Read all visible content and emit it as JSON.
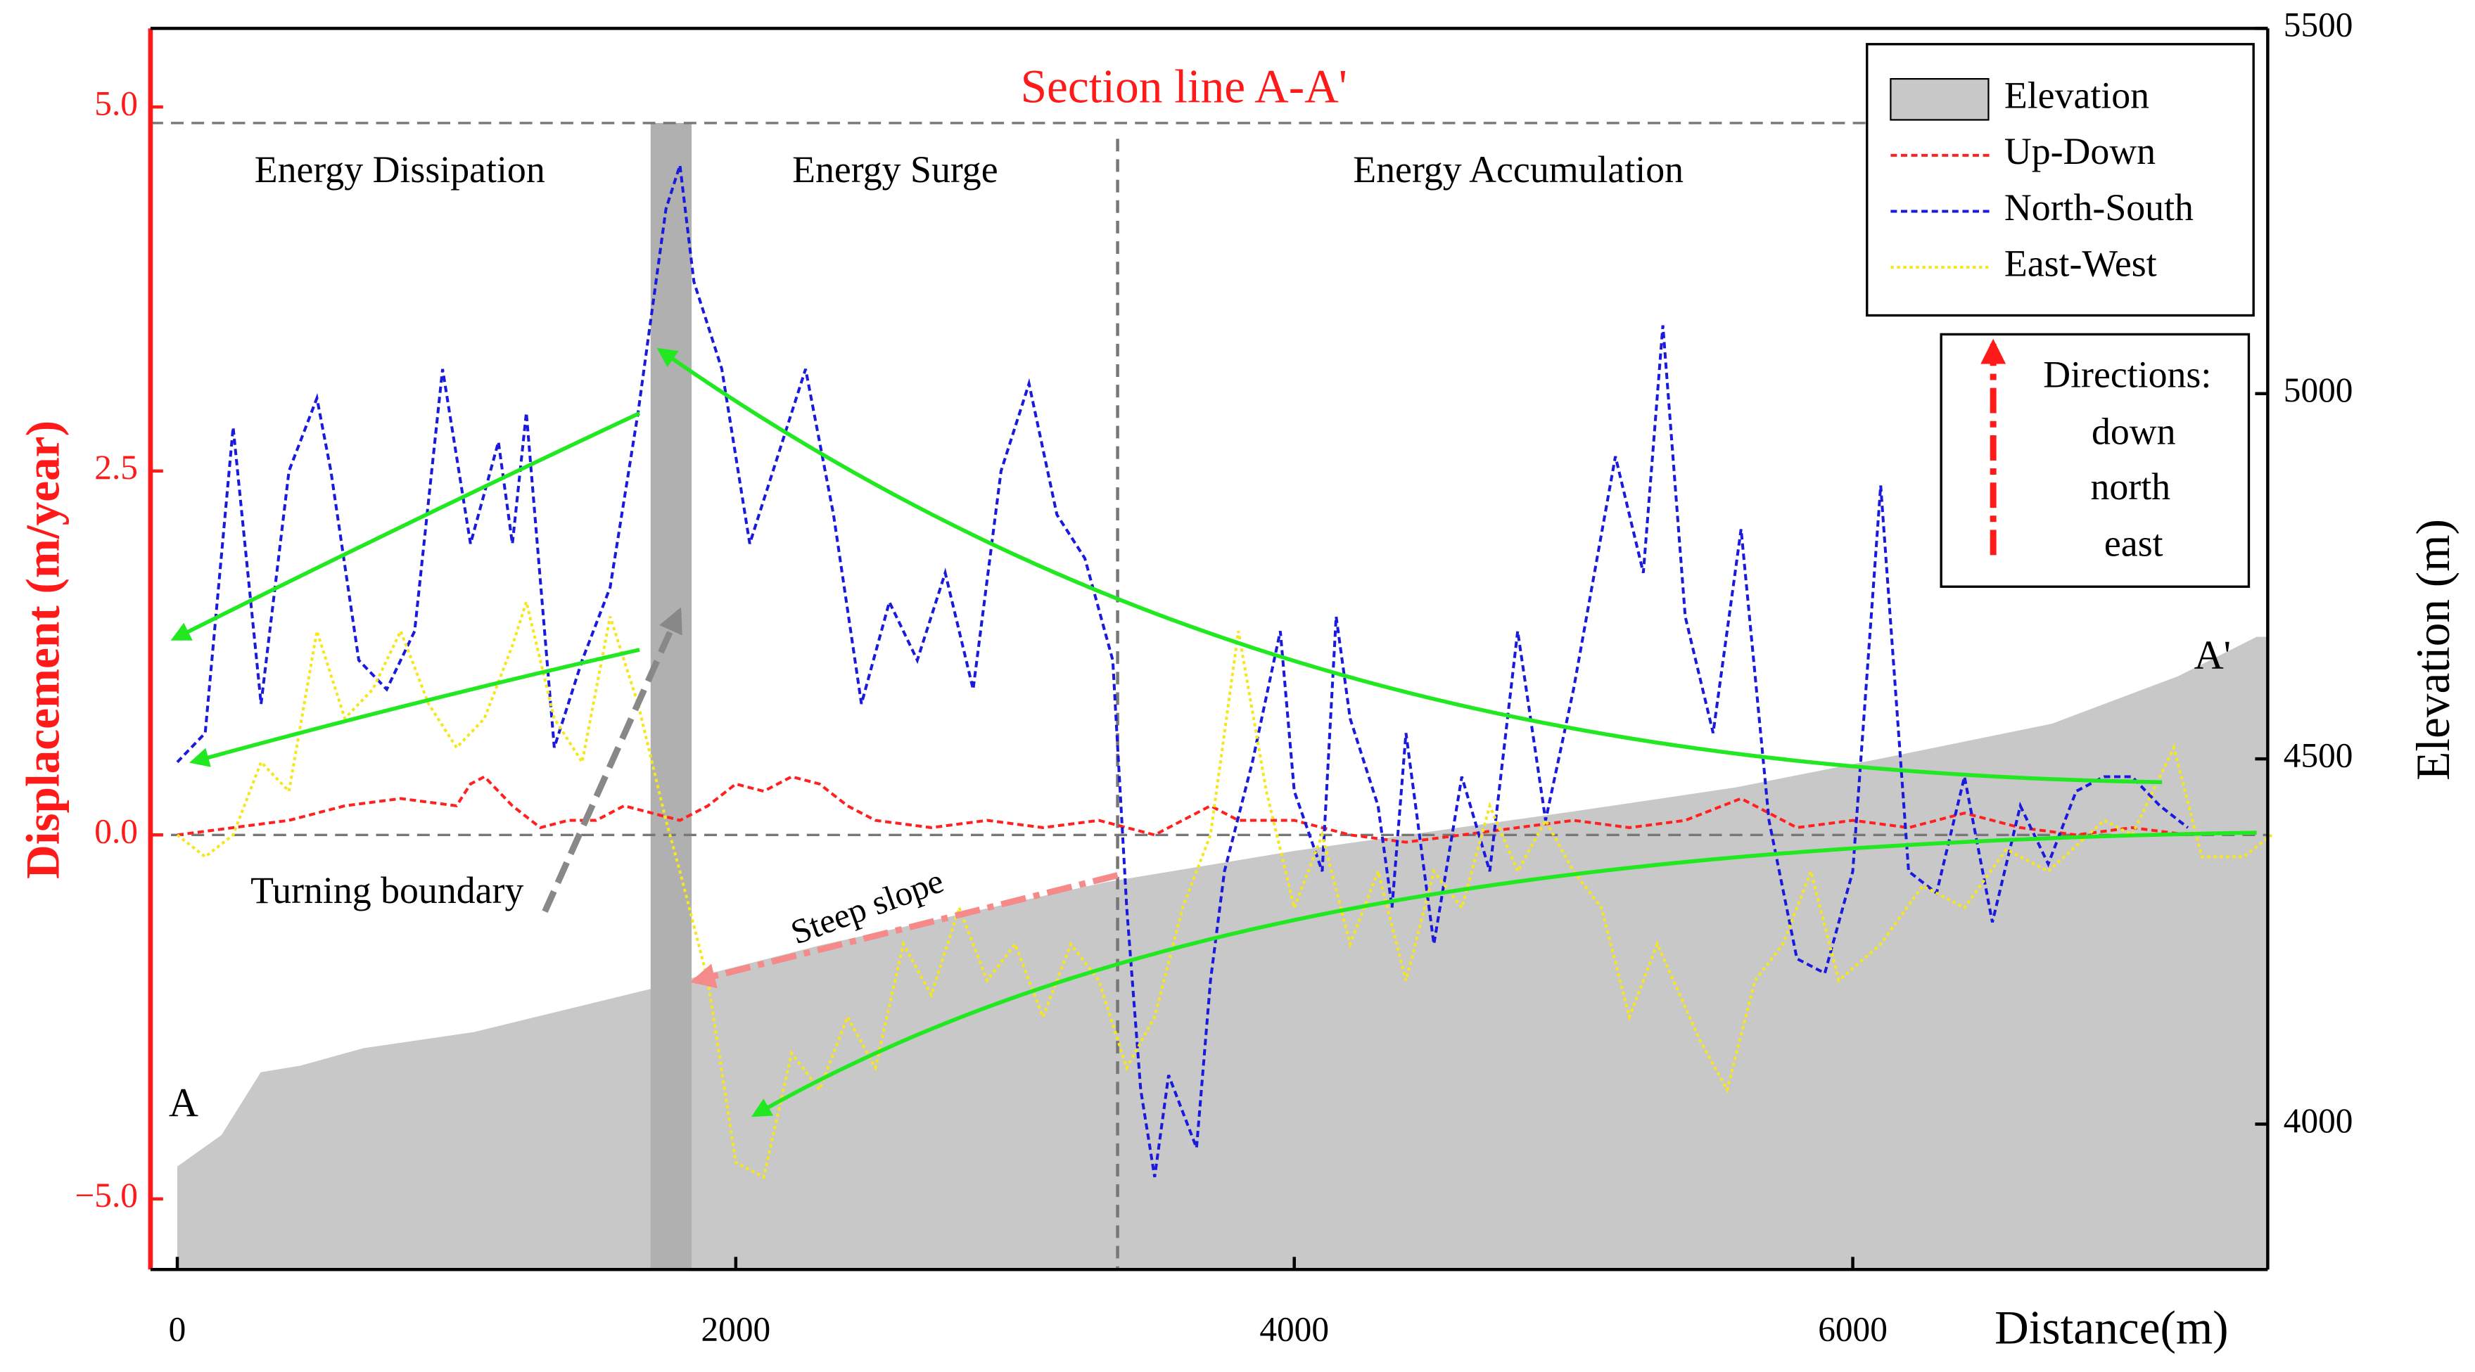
{
  "chart_data": {
    "type": "line",
    "title": "Section line A-A'",
    "xlabel": "Distance(m)",
    "ylabel": "Displacement (m/year)",
    "y2label": "Elevation (m)",
    "xlim": [
      -96,
      7486
    ],
    "xticks": [
      0,
      2000,
      4000,
      6000
    ],
    "ylim": [
      -5.97,
      5.54
    ],
    "y_negative_compression": 0.5,
    "yticks": [
      {
        "value": 5,
        "label": "5.0"
      },
      {
        "value": 2.5,
        "label": "2.5"
      },
      {
        "value": 0,
        "label": "0.0"
      },
      {
        "value": -5,
        "label": "−5.0"
      }
    ],
    "y2lim": [
      3801,
      5500
    ],
    "y2ticks": [
      4000,
      4500,
      5000,
      5500
    ],
    "legend": "upper right",
    "series": [
      {
        "name": "Elevation",
        "type": "area",
        "axis": "y2",
        "color": "#c8c8c8",
        "x": [
          0,
          158,
          299,
          441,
          667,
          1062,
          1684,
          1853,
          2305,
          3322,
          4000,
          5017,
          5582,
          6147,
          6712,
          7164,
          7446
        ],
        "values": [
          3942,
          3985,
          4071,
          4080,
          4104,
          4126,
          4184,
          4201,
          4245,
          4331,
          4374,
          4429,
          4461,
          4504,
          4548,
          4613,
          4667
        ]
      },
      {
        "name": "Up-Down",
        "color": "#ff2020",
        "x": [
          0,
          200,
          400,
          600,
          800,
          1000,
          1050,
          1100,
          1200,
          1300,
          1400,
          1500,
          1600,
          1700,
          1800,
          1900,
          2000,
          2100,
          2200,
          2300,
          2400,
          2500,
          2700,
          2900,
          3100,
          3300,
          3500,
          3700,
          3800,
          4000,
          4200,
          4400,
          4600,
          4800,
          5000,
          5200,
          5400,
          5600,
          5800,
          6000,
          6200,
          6400,
          6600,
          6800,
          7000,
          7200
        ],
        "values": [
          0.0,
          0.05,
          0.1,
          0.2,
          0.25,
          0.2,
          0.35,
          0.4,
          0.2,
          0.05,
          0.1,
          0.1,
          0.2,
          0.15,
          0.1,
          0.2,
          0.35,
          0.3,
          0.4,
          0.35,
          0.2,
          0.1,
          0.05,
          0.1,
          0.05,
          0.1,
          0.0,
          0.2,
          0.1,
          0.1,
          0.0,
          -0.1,
          0.0,
          0.05,
          0.1,
          0.05,
          0.1,
          0.25,
          0.05,
          0.1,
          0.05,
          0.15,
          0.05,
          0.0,
          0.05,
          0.0
        ]
      },
      {
        "name": "North-South",
        "color": "#1a1adc",
        "x": [
          0,
          100,
          200,
          300,
          400,
          500,
          550,
          650,
          750,
          850,
          950,
          1050,
          1150,
          1200,
          1250,
          1350,
          1450,
          1550,
          1650,
          1750,
          1800,
          1850,
          1950,
          2050,
          2150,
          2250,
          2350,
          2450,
          2550,
          2650,
          2750,
          2850,
          2950,
          3050,
          3150,
          3250,
          3350,
          3400,
          3450,
          3500,
          3550,
          3650,
          3700,
          3750,
          3850,
          3950,
          4000,
          4100,
          4150,
          4200,
          4300,
          4350,
          4400,
          4500,
          4600,
          4700,
          4800,
          4900,
          5000,
          5150,
          5250,
          5320,
          5400,
          5500,
          5600,
          5700,
          5800,
          5900,
          6000,
          6100,
          6200,
          6300,
          6400,
          6500,
          6600,
          6700,
          6800,
          6900,
          7000,
          7100,
          7200
        ],
        "values": [
          0.5,
          0.7,
          2.8,
          0.9,
          2.5,
          3.0,
          2.5,
          1.2,
          1.0,
          1.4,
          3.2,
          2.0,
          2.7,
          2.0,
          2.9,
          0.6,
          1.2,
          1.7,
          2.9,
          4.3,
          4.6,
          3.8,
          3.2,
          2.0,
          2.6,
          3.2,
          2.2,
          0.9,
          1.6,
          1.2,
          1.8,
          1.0,
          2.5,
          3.1,
          2.2,
          1.9,
          1.2,
          -1.0,
          -3.5,
          -4.7,
          -3.3,
          -4.3,
          -2.0,
          -0.5,
          0.5,
          1.4,
          0.3,
          -0.5,
          1.5,
          0.8,
          0.2,
          -1.0,
          0.7,
          -1.5,
          0.4,
          -0.5,
          1.4,
          0.1,
          1.0,
          2.6,
          1.8,
          3.5,
          1.5,
          0.7,
          2.1,
          0.1,
          -1.7,
          -1.9,
          -0.5,
          2.4,
          -0.5,
          -0.8,
          0.4,
          -1.2,
          0.2,
          -0.4,
          0.3,
          0.4,
          0.4,
          0.2,
          0.05
        ]
      },
      {
        "name": "East-West",
        "color": "#f5e61e",
        "x": [
          0,
          100,
          200,
          300,
          400,
          500,
          600,
          700,
          800,
          900,
          1000,
          1100,
          1200,
          1250,
          1350,
          1450,
          1550,
          1650,
          1750,
          1800,
          1900,
          2000,
          2100,
          2200,
          2300,
          2400,
          2500,
          2600,
          2700,
          2800,
          2900,
          3000,
          3100,
          3200,
          3300,
          3400,
          3500,
          3600,
          3700,
          3800,
          3900,
          4000,
          4100,
          4200,
          4300,
          4400,
          4500,
          4600,
          4700,
          4800,
          4900,
          5000,
          5100,
          5200,
          5300,
          5450,
          5550,
          5650,
          5750,
          5850,
          5950,
          6100,
          6250,
          6400,
          6550,
          6700,
          6900,
          7000,
          7150,
          7250,
          7400,
          7500
        ],
        "values": [
          0.0,
          -0.3,
          0.0,
          0.5,
          0.3,
          1.4,
          0.8,
          1.0,
          1.4,
          0.9,
          0.6,
          0.8,
          1.3,
          1.6,
          0.8,
          0.5,
          1.5,
          0.9,
          0.1,
          -0.5,
          -2.0,
          -4.5,
          -4.7,
          -3.0,
          -3.5,
          -2.5,
          -3.2,
          -1.5,
          -2.2,
          -1.0,
          -2.0,
          -1.5,
          -2.5,
          -1.5,
          -2.0,
          -3.2,
          -2.5,
          -1.0,
          0.0,
          1.4,
          0.3,
          -1.0,
          0.0,
          -1.5,
          -0.5,
          -2.0,
          -0.5,
          -1.0,
          0.2,
          -0.5,
          0.1,
          -0.5,
          -1.0,
          -2.5,
          -1.5,
          -2.8,
          -3.5,
          -2.0,
          -1.5,
          -0.5,
          -2.0,
          -1.5,
          -0.7,
          -1.0,
          -0.2,
          -0.5,
          0.1,
          0.0,
          0.6,
          -0.3,
          -0.3,
          0.0
        ]
      }
    ],
    "annotations": [
      "Energy Dissipation",
      "Energy Surge",
      "Energy Accumulation",
      "Turning boundary",
      "Steep slope",
      "A",
      "A'",
      "Directions:",
      "down",
      "north",
      "east"
    ]
  }
}
